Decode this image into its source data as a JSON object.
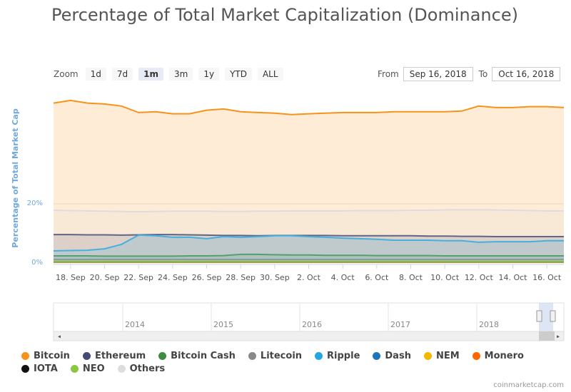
{
  "chart_data": {
    "type": "area",
    "title": "Percentage of Total Market Capitalization (Dominance)",
    "range_selector": {
      "zoom_label": "Zoom",
      "buttons": [
        "1d",
        "7d",
        "1m",
        "3m",
        "1y",
        "YTD",
        "ALL"
      ],
      "active": "1m",
      "from_label": "From",
      "from": "Sep 16, 2018",
      "to_label": "To",
      "to": "Oct 16, 2018"
    },
    "y_label": "Percentage of Total Market Cap",
    "ylim": [
      0,
      58
    ],
    "yticks": [
      {
        "value": 0,
        "label": "0%"
      },
      {
        "value": 20,
        "label": "20%"
      }
    ],
    "grid": true,
    "categories": [
      null,
      "18. Sep",
      null,
      "20. Sep",
      null,
      "22. Sep",
      null,
      "24. Sep",
      null,
      "26. Sep",
      null,
      "28. Sep",
      null,
      "30. Sep",
      null,
      "2. Oct",
      null,
      "4. Oct",
      null,
      "6. Oct",
      null,
      "8. Oct",
      null,
      "10. Oct",
      null,
      "12. Oct",
      null,
      "14. Oct",
      null,
      "16. Oct",
      null
    ],
    "series": [
      {
        "name": "Bitcoin",
        "color": "#f7931a",
        "values": [
          54.0,
          54.9,
          54.0,
          53.7,
          53.0,
          50.8,
          51.1,
          50.4,
          50.4,
          51.6,
          52.0,
          51.1,
          50.8,
          50.6,
          50.1,
          50.4,
          50.6,
          50.8,
          50.8,
          50.8,
          51.1,
          51.1,
          51.1,
          51.1,
          51.3,
          53.0,
          52.5,
          52.5,
          52.8,
          52.8,
          52.5
        ]
      },
      {
        "name": "Ethereum",
        "color": "#454a75",
        "values": [
          9.6,
          9.6,
          9.5,
          9.5,
          9.4,
          9.5,
          9.6,
          9.6,
          9.5,
          9.4,
          9.3,
          9.3,
          9.2,
          9.3,
          9.3,
          9.3,
          9.3,
          9.2,
          9.2,
          9.2,
          9.2,
          9.2,
          9.1,
          9.1,
          9.0,
          9.0,
          8.9,
          8.9,
          8.9,
          8.9,
          8.9
        ]
      },
      {
        "name": "Bitcoin Cash",
        "color": "#3d8c40",
        "values": [
          2.4,
          2.4,
          2.4,
          2.3,
          2.3,
          2.3,
          2.3,
          2.3,
          2.4,
          2.4,
          2.5,
          2.9,
          2.9,
          2.8,
          2.7,
          2.7,
          2.6,
          2.6,
          2.6,
          2.5,
          2.5,
          2.5,
          2.5,
          2.4,
          2.4,
          2.4,
          2.4,
          2.4,
          2.4,
          2.4,
          2.4
        ]
      },
      {
        "name": "Litecoin",
        "color": "#888888",
        "values": [
          1.2,
          1.2,
          1.2,
          1.2,
          1.2,
          1.2,
          1.2,
          1.2,
          1.2,
          1.2,
          1.2,
          1.2,
          1.2,
          1.2,
          1.2,
          1.2,
          1.2,
          1.2,
          1.2,
          1.2,
          1.2,
          1.2,
          1.2,
          1.2,
          1.2,
          1.2,
          1.2,
          1.2,
          1.2,
          1.2,
          1.2
        ]
      },
      {
        "name": "Ripple",
        "color": "#23a7e0",
        "values": [
          4.1,
          4.2,
          4.3,
          4.8,
          6.3,
          9.4,
          9.2,
          8.7,
          8.7,
          8.2,
          8.9,
          8.7,
          8.9,
          9.2,
          9.2,
          8.9,
          8.7,
          8.4,
          8.2,
          8.0,
          7.7,
          7.7,
          7.7,
          7.5,
          7.5,
          7.0,
          7.2,
          7.2,
          7.2,
          7.5,
          7.5
        ]
      },
      {
        "name": "Dash",
        "color": "#1c75bc",
        "values": [
          0.6,
          0.6,
          0.6,
          0.6,
          0.6,
          0.6,
          0.6,
          0.6,
          0.6,
          0.6,
          0.6,
          0.6,
          0.6,
          0.6,
          0.6,
          0.6,
          0.6,
          0.6,
          0.6,
          0.6,
          0.6,
          0.6,
          0.6,
          0.6,
          0.6,
          0.6,
          0.6,
          0.6,
          0.6,
          0.6,
          0.6
        ]
      },
      {
        "name": "NEM",
        "color": "#f5b800",
        "values": [
          0.3,
          0.3,
          0.3,
          0.3,
          0.3,
          0.3,
          0.3,
          0.3,
          0.3,
          0.3,
          0.3,
          0.3,
          0.3,
          0.3,
          0.3,
          0.3,
          0.3,
          0.3,
          0.3,
          0.3,
          0.3,
          0.3,
          0.3,
          0.3,
          0.3,
          0.3,
          0.3,
          0.3,
          0.3,
          0.3,
          0.3
        ]
      },
      {
        "name": "Monero",
        "color": "#ff6600",
        "values": [
          0.6,
          0.6,
          0.6,
          0.6,
          0.6,
          0.6,
          0.6,
          0.6,
          0.6,
          0.6,
          0.6,
          0.6,
          0.6,
          0.6,
          0.6,
          0.6,
          0.6,
          0.6,
          0.6,
          0.6,
          0.6,
          0.6,
          0.6,
          0.6,
          0.6,
          0.6,
          0.6,
          0.6,
          0.6,
          0.6,
          0.6
        ]
      },
      {
        "name": "IOTA",
        "color": "#111111",
        "values": [
          0.5,
          0.5,
          0.5,
          0.5,
          0.5,
          0.5,
          0.5,
          0.5,
          0.5,
          0.5,
          0.5,
          0.5,
          0.5,
          0.5,
          0.5,
          0.5,
          0.5,
          0.5,
          0.5,
          0.5,
          0.5,
          0.5,
          0.5,
          0.5,
          0.5,
          0.5,
          0.5,
          0.5,
          0.5,
          0.5,
          0.5
        ]
      },
      {
        "name": "NEO",
        "color": "#8dc63f",
        "values": [
          0.6,
          0.6,
          0.6,
          0.6,
          0.6,
          0.6,
          0.6,
          0.6,
          0.6,
          0.6,
          0.6,
          0.6,
          0.6,
          0.6,
          0.6,
          0.6,
          0.6,
          0.6,
          0.6,
          0.6,
          0.6,
          0.6,
          0.6,
          0.6,
          0.6,
          0.6,
          0.6,
          0.6,
          0.6,
          0.6,
          0.6
        ]
      },
      {
        "name": "Others",
        "color": "#dddddd",
        "values": [
          17.8,
          17.7,
          17.6,
          17.5,
          17.4,
          17.3,
          17.4,
          17.5,
          17.5,
          17.5,
          17.4,
          17.4,
          17.5,
          17.5,
          17.6,
          17.6,
          17.6,
          17.6,
          17.7,
          17.7,
          17.7,
          17.8,
          17.8,
          17.9,
          18.0,
          18.0,
          17.9,
          17.8,
          17.7,
          17.6,
          17.6
        ]
      }
    ],
    "navigator_years": [
      "2014",
      "2015",
      "2016",
      "2017",
      "2018"
    ],
    "credit": "coinmarketcap.com"
  }
}
